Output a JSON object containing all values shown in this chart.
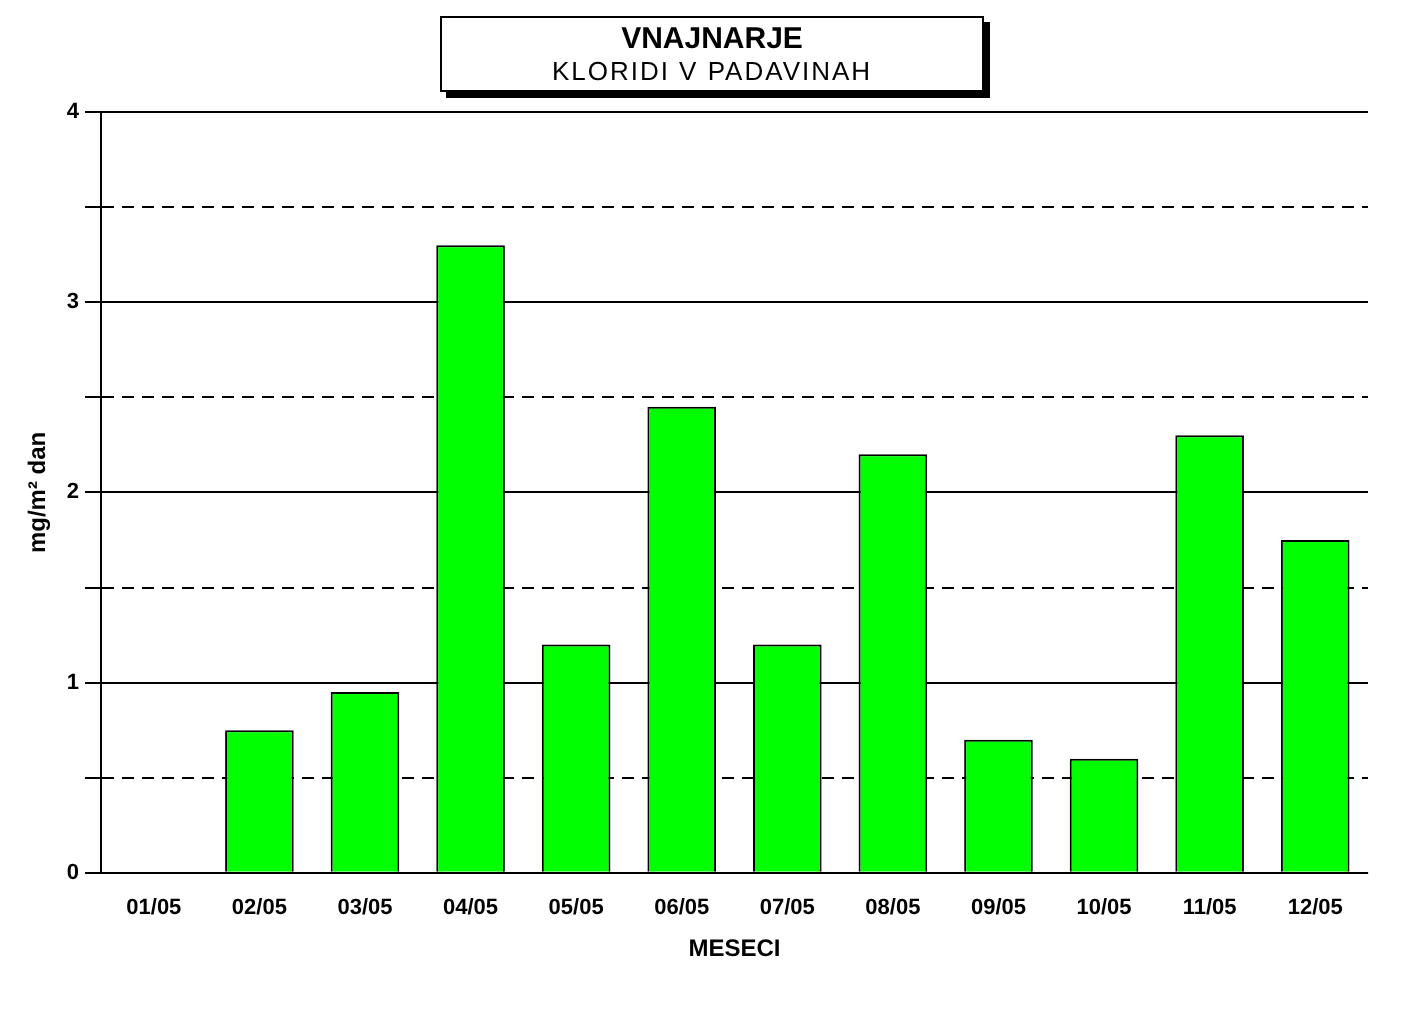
{
  "chart_data": {
    "type": "bar",
    "title": "VNAJNARJE",
    "subtitle": "KLORIDI V PADAVINAH",
    "xlabel": "MESECI",
    "ylabel": "mg/m² dan",
    "categories": [
      "01/05",
      "02/05",
      "03/05",
      "04/05",
      "05/05",
      "06/05",
      "07/05",
      "08/05",
      "09/05",
      "10/05",
      "11/05",
      "12/05"
    ],
    "values": [
      0,
      0.75,
      0.95,
      3.3,
      1.2,
      2.45,
      1.2,
      2.2,
      0.7,
      0.6,
      2.3,
      1.75
    ],
    "color": "#00ff00",
    "ylim": [
      0,
      4
    ],
    "yticks": [
      0,
      {
        "value": 0.5,
        "label": null
      },
      1,
      {
        "value": 1.5,
        "label": null
      },
      2,
      {
        "value": 2.5,
        "label": null
      },
      3,
      {
        "value": 3.5,
        "label": null
      },
      4
    ],
    "grid": "y",
    "legend": false
  }
}
